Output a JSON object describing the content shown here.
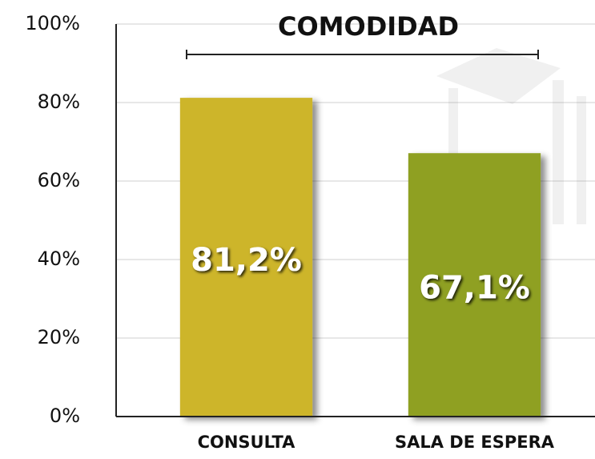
{
  "chart_data": {
    "type": "bar",
    "title": "COMODIDAD",
    "categories": [
      "CONSULTA",
      "SALA DE ESPERA"
    ],
    "values": [
      81.2,
      67.1
    ],
    "value_labels": [
      "81,2%",
      "67,1%"
    ],
    "colors": [
      "#cdb52a",
      "#8fa020"
    ],
    "ylim": [
      0,
      100
    ],
    "yticks": [
      {
        "value": 0,
        "label": "0%"
      },
      {
        "value": 20,
        "label": "20%"
      },
      {
        "value": 40,
        "label": "40%"
      },
      {
        "value": 60,
        "label": "60%"
      },
      {
        "value": 80,
        "label": "80%"
      },
      {
        "value": 100,
        "label": "100%"
      }
    ],
    "grid": true
  }
}
